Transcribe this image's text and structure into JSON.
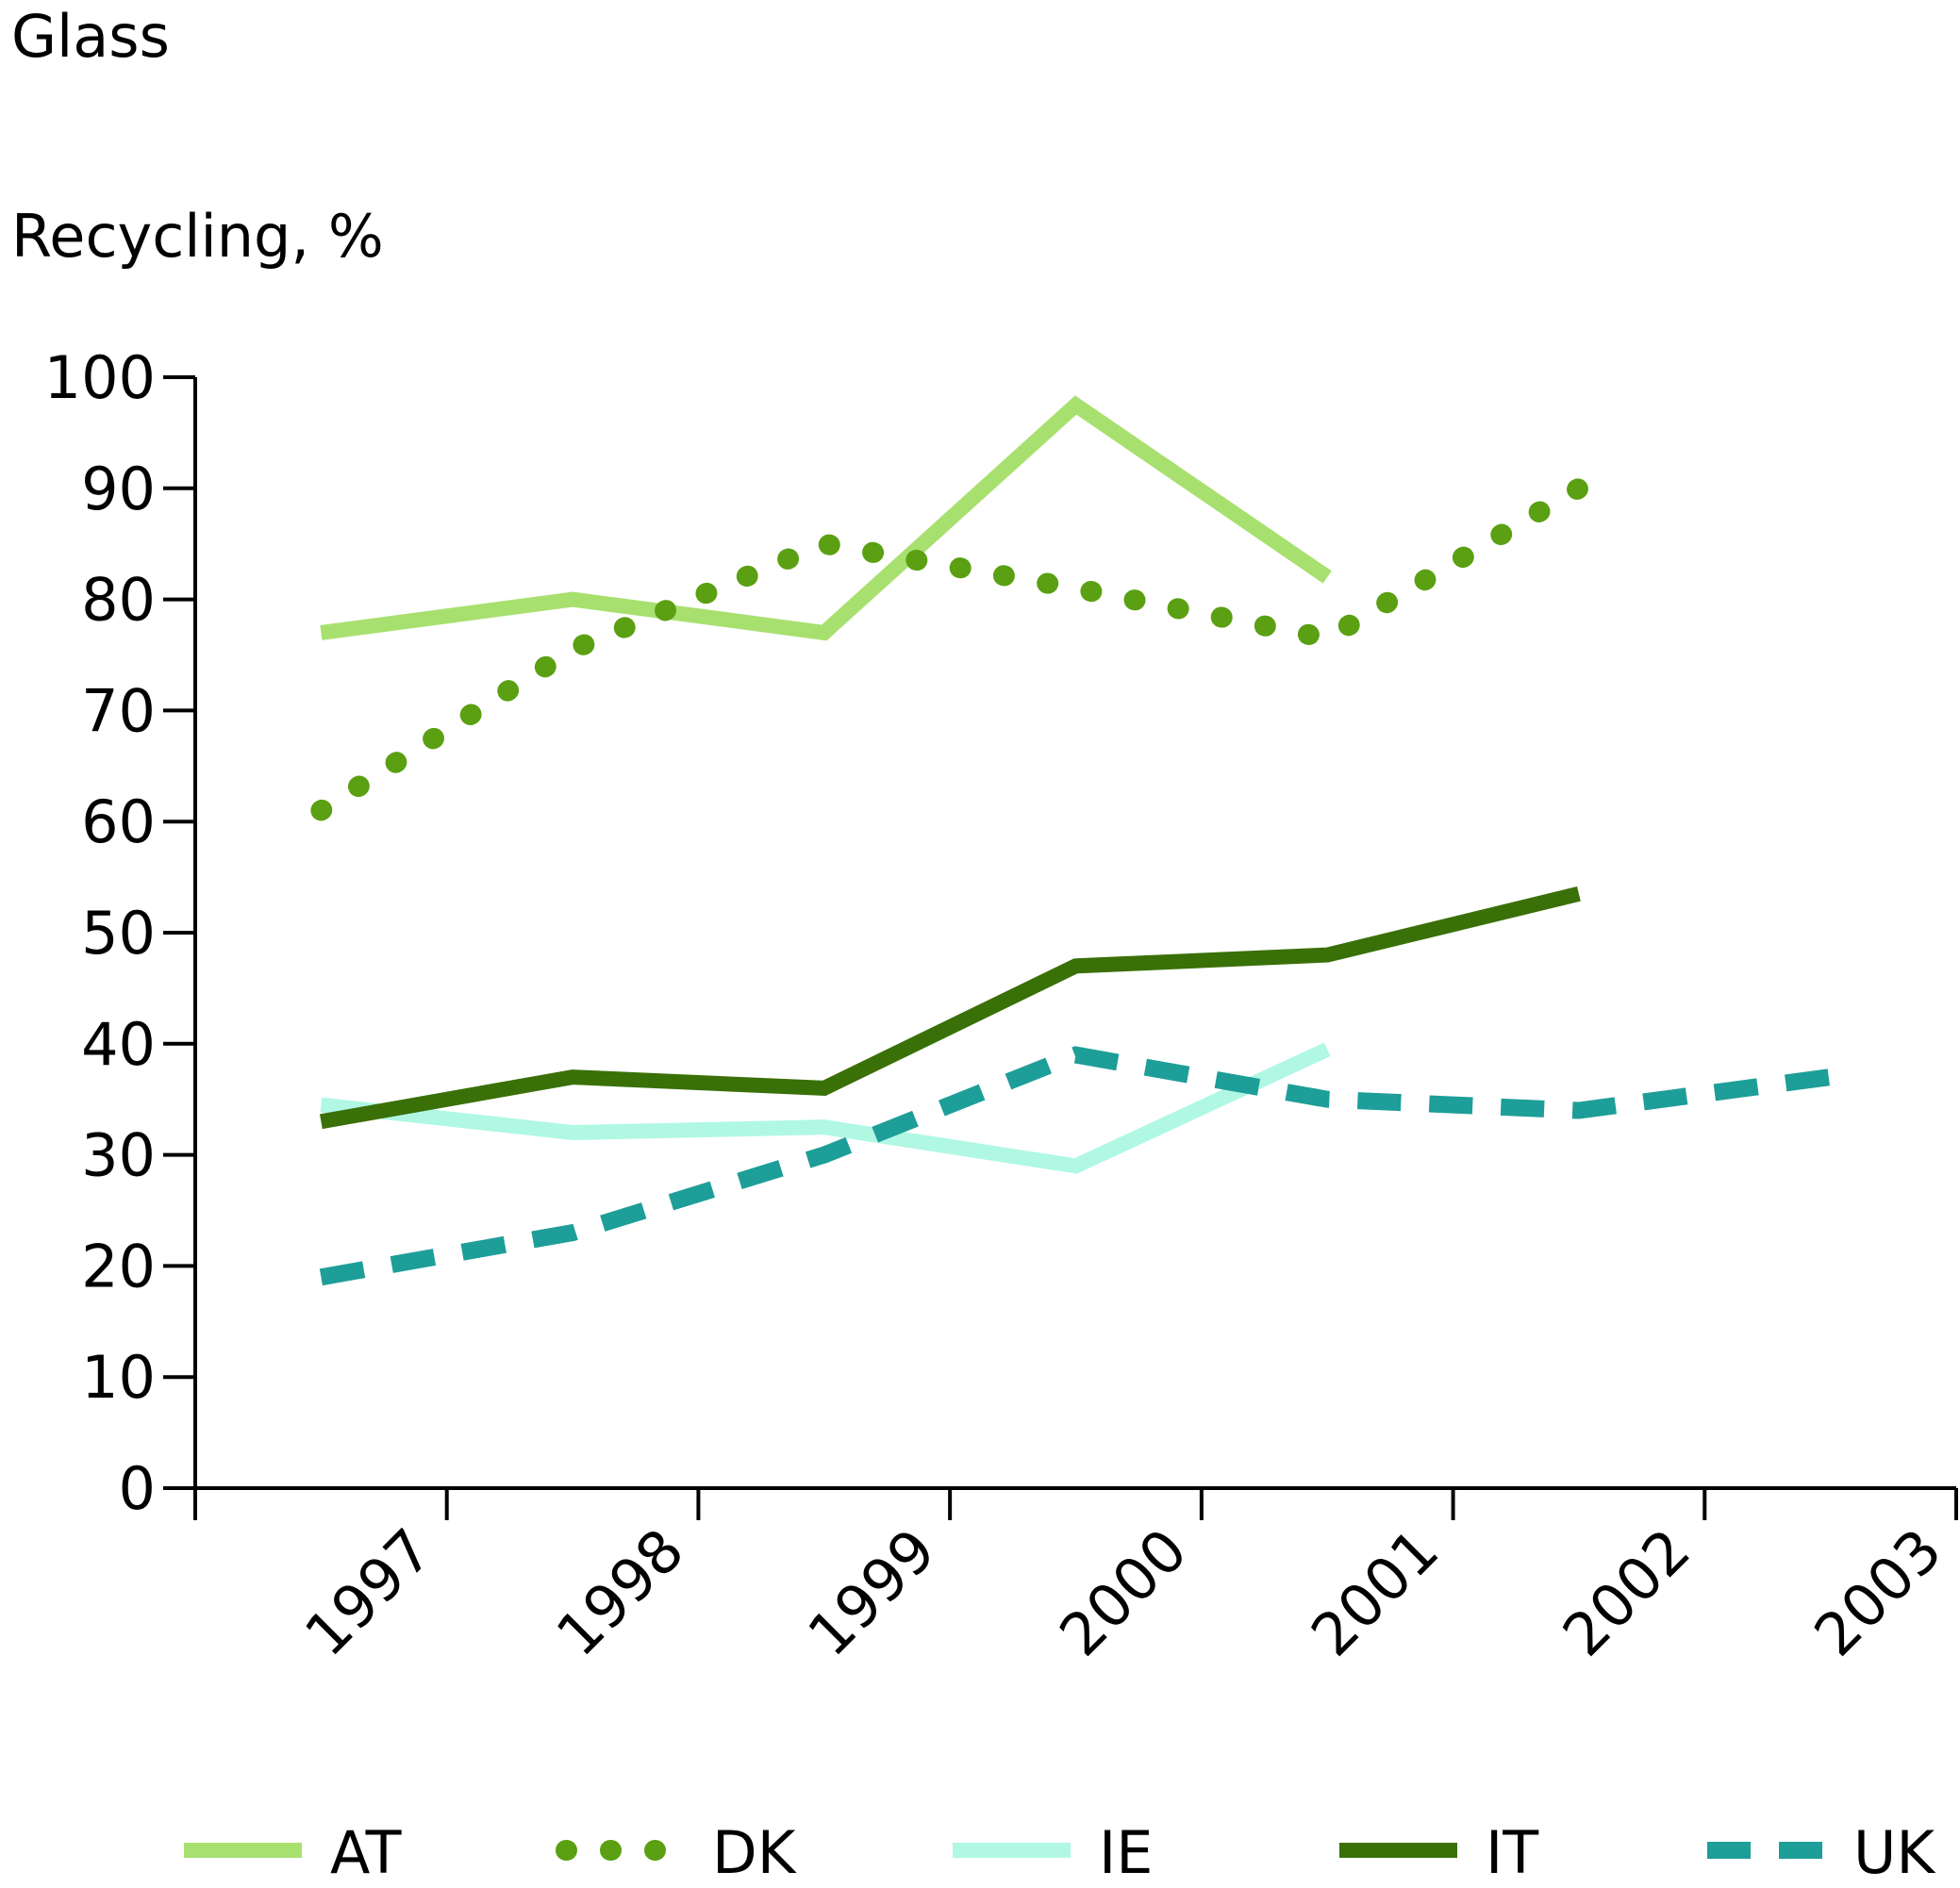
{
  "chart_data": {
    "type": "line",
    "title": "Glass",
    "ylabel": "Recycling, %",
    "xlabel": "",
    "ylim": [
      0,
      100
    ],
    "yticks": [
      "0",
      "10",
      "20",
      "30",
      "40",
      "50",
      "60",
      "70",
      "80",
      "90",
      "100"
    ],
    "categories": [
      "1997",
      "1998",
      "1999",
      "2000",
      "2001",
      "2002",
      "2003"
    ],
    "grid": false,
    "legend_position": "bottom",
    "series": [
      {
        "name": "AT",
        "values": [
          77,
          80,
          77,
          97.5,
          82,
          null,
          null
        ],
        "color": "#a8e070",
        "style": "solid"
      },
      {
        "name": "DK",
        "values": [
          61,
          75.5,
          85,
          81,
          76.5,
          90,
          null
        ],
        "color": "#5aa012",
        "style": "dotted"
      },
      {
        "name": "IE",
        "values": [
          34.5,
          32,
          32.5,
          29,
          39.5,
          null,
          null
        ],
        "color": "#b0f8e4",
        "style": "solid"
      },
      {
        "name": "IT",
        "values": [
          33,
          37,
          36,
          47,
          48,
          53.5,
          null
        ],
        "color": "#3a7008",
        "style": "solid"
      },
      {
        "name": "UK",
        "values": [
          19,
          23,
          30,
          39,
          35,
          34,
          37
        ],
        "color": "#1e9e98",
        "style": "dashed"
      }
    ]
  }
}
